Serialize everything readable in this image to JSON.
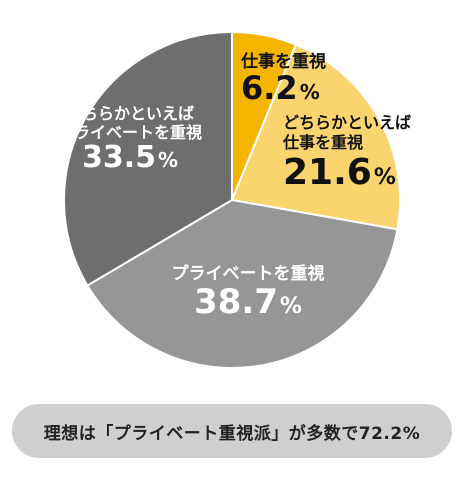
{
  "chart_data": {
    "type": "pie",
    "slices": [
      {
        "name_lines": [
          "仕事を重視"
        ],
        "value": 6.2,
        "value_text": "6.2",
        "unit": "%",
        "color": "#F5B400",
        "text_color": "#111111"
      },
      {
        "name_lines": [
          "どちらかといえば",
          "仕事を重視"
        ],
        "value": 21.6,
        "value_text": "21.6",
        "unit": "%",
        "color": "#FAD46E",
        "text_color": "#111111"
      },
      {
        "name_lines": [
          "プライベートを重視"
        ],
        "value": 38.7,
        "value_text": "38.7",
        "unit": "%",
        "color": "#969696",
        "text_color": "#ffffff"
      },
      {
        "name_lines": [
          "どちらかといえば",
          "プライベートを重視"
        ],
        "value": 33.5,
        "value_text": "33.5",
        "unit": "%",
        "color": "#6E6E6E",
        "text_color": "#ffffff"
      }
    ]
  },
  "summary": {
    "text": "理想は「プライベート重視派」が多数で72.2%"
  }
}
